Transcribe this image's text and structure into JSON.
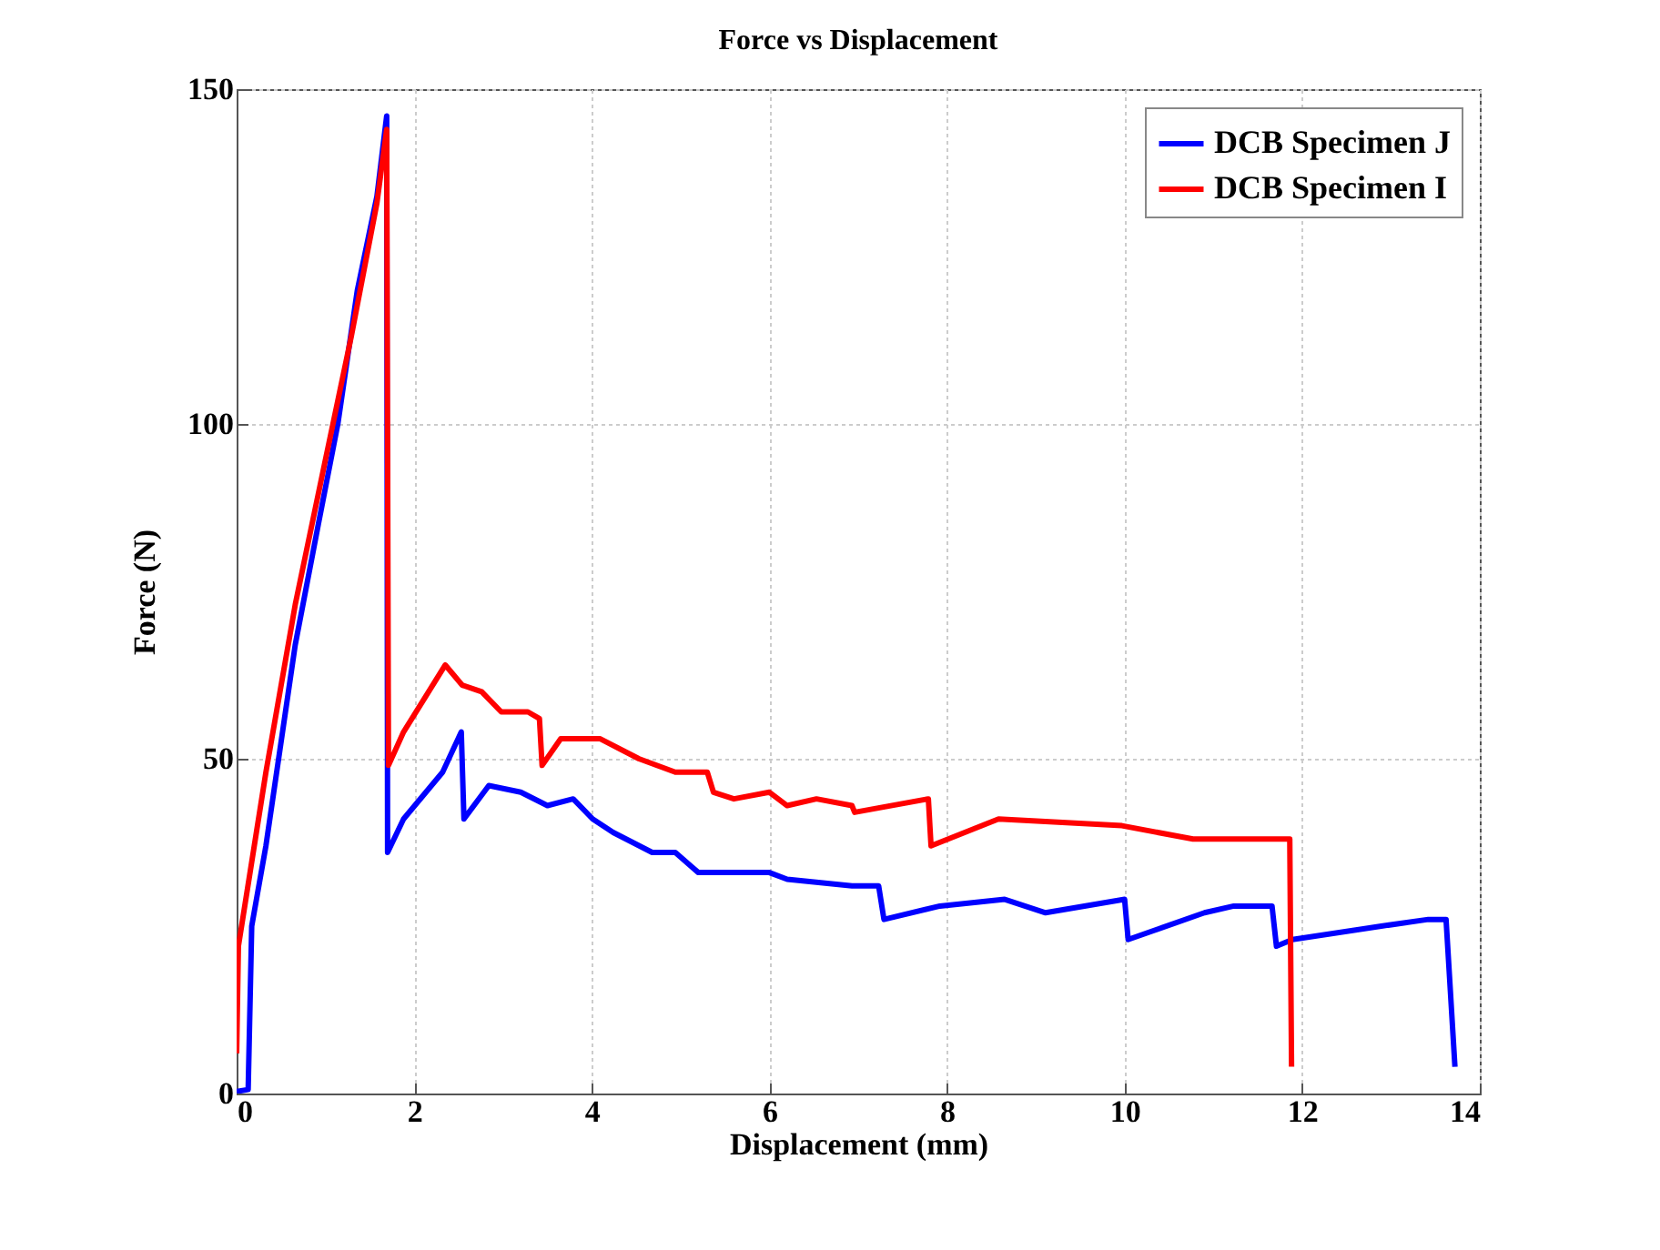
{
  "chart_data": {
    "type": "line",
    "title": "Force vs Displacement",
    "xlabel": "Displacement (mm)",
    "ylabel": "Force (N)",
    "xlim": [
      0,
      14
    ],
    "xticks": [
      0,
      2,
      4,
      6,
      8,
      10,
      12,
      14
    ],
    "ylim": [
      0,
      150
    ],
    "yticks": [
      0,
      50,
      100,
      150
    ],
    "grid": true,
    "legend": "top right",
    "line_style": "solid",
    "series": [
      {
        "name": "DCB Specimen J",
        "color": "#0000ff",
        "x": [
          0,
          0.13,
          0.17,
          0.33,
          0.66,
          0.92,
          1.14,
          1.36,
          1.58,
          1.69,
          1.7,
          1.88,
          2.32,
          2.53,
          2.56,
          2.84,
          3.2,
          3.5,
          3.79,
          4.01,
          4.24,
          4.68,
          4.94,
          5.2,
          6.0,
          6.2,
          6.93,
          7.23,
          7.29,
          7.92,
          8.65,
          9.11,
          10.0,
          10.04,
          10.9,
          11.23,
          11.66,
          11.71,
          11.89,
          12.89,
          13.42,
          13.62,
          13.72
        ],
        "values": [
          0.3,
          0.6,
          25,
          37,
          67,
          85,
          100,
          120,
          134,
          146,
          36,
          41,
          48,
          54,
          41,
          46,
          45,
          43,
          44,
          41,
          39,
          36,
          36,
          33,
          33,
          32,
          31,
          31,
          26,
          28,
          29,
          27,
          29,
          23,
          27,
          28,
          28,
          22,
          23,
          25,
          26,
          26,
          4
        ]
      },
      {
        "name": "DCB Specimen I",
        "color": "#ff0000",
        "x": [
          0,
          0.02,
          0.33,
          0.66,
          0.99,
          1.29,
          1.58,
          1.69,
          1.71,
          1.88,
          2.35,
          2.54,
          2.76,
          2.98,
          3.28,
          3.41,
          3.44,
          3.65,
          4.09,
          4.53,
          4.94,
          5.3,
          5.37,
          5.6,
          6.0,
          6.2,
          6.53,
          6.93,
          6.96,
          7.79,
          7.82,
          8.58,
          9.97,
          10.77,
          11.86,
          11.88
        ],
        "values": [
          6,
          22,
          48,
          73,
          94,
          113,
          133,
          144,
          49,
          54,
          64,
          61,
          60,
          57,
          57,
          56,
          49,
          53,
          53,
          50,
          48,
          48,
          45,
          44,
          45,
          43,
          44,
          43,
          42,
          44,
          37,
          41,
          40,
          38,
          38,
          4
        ]
      }
    ]
  }
}
